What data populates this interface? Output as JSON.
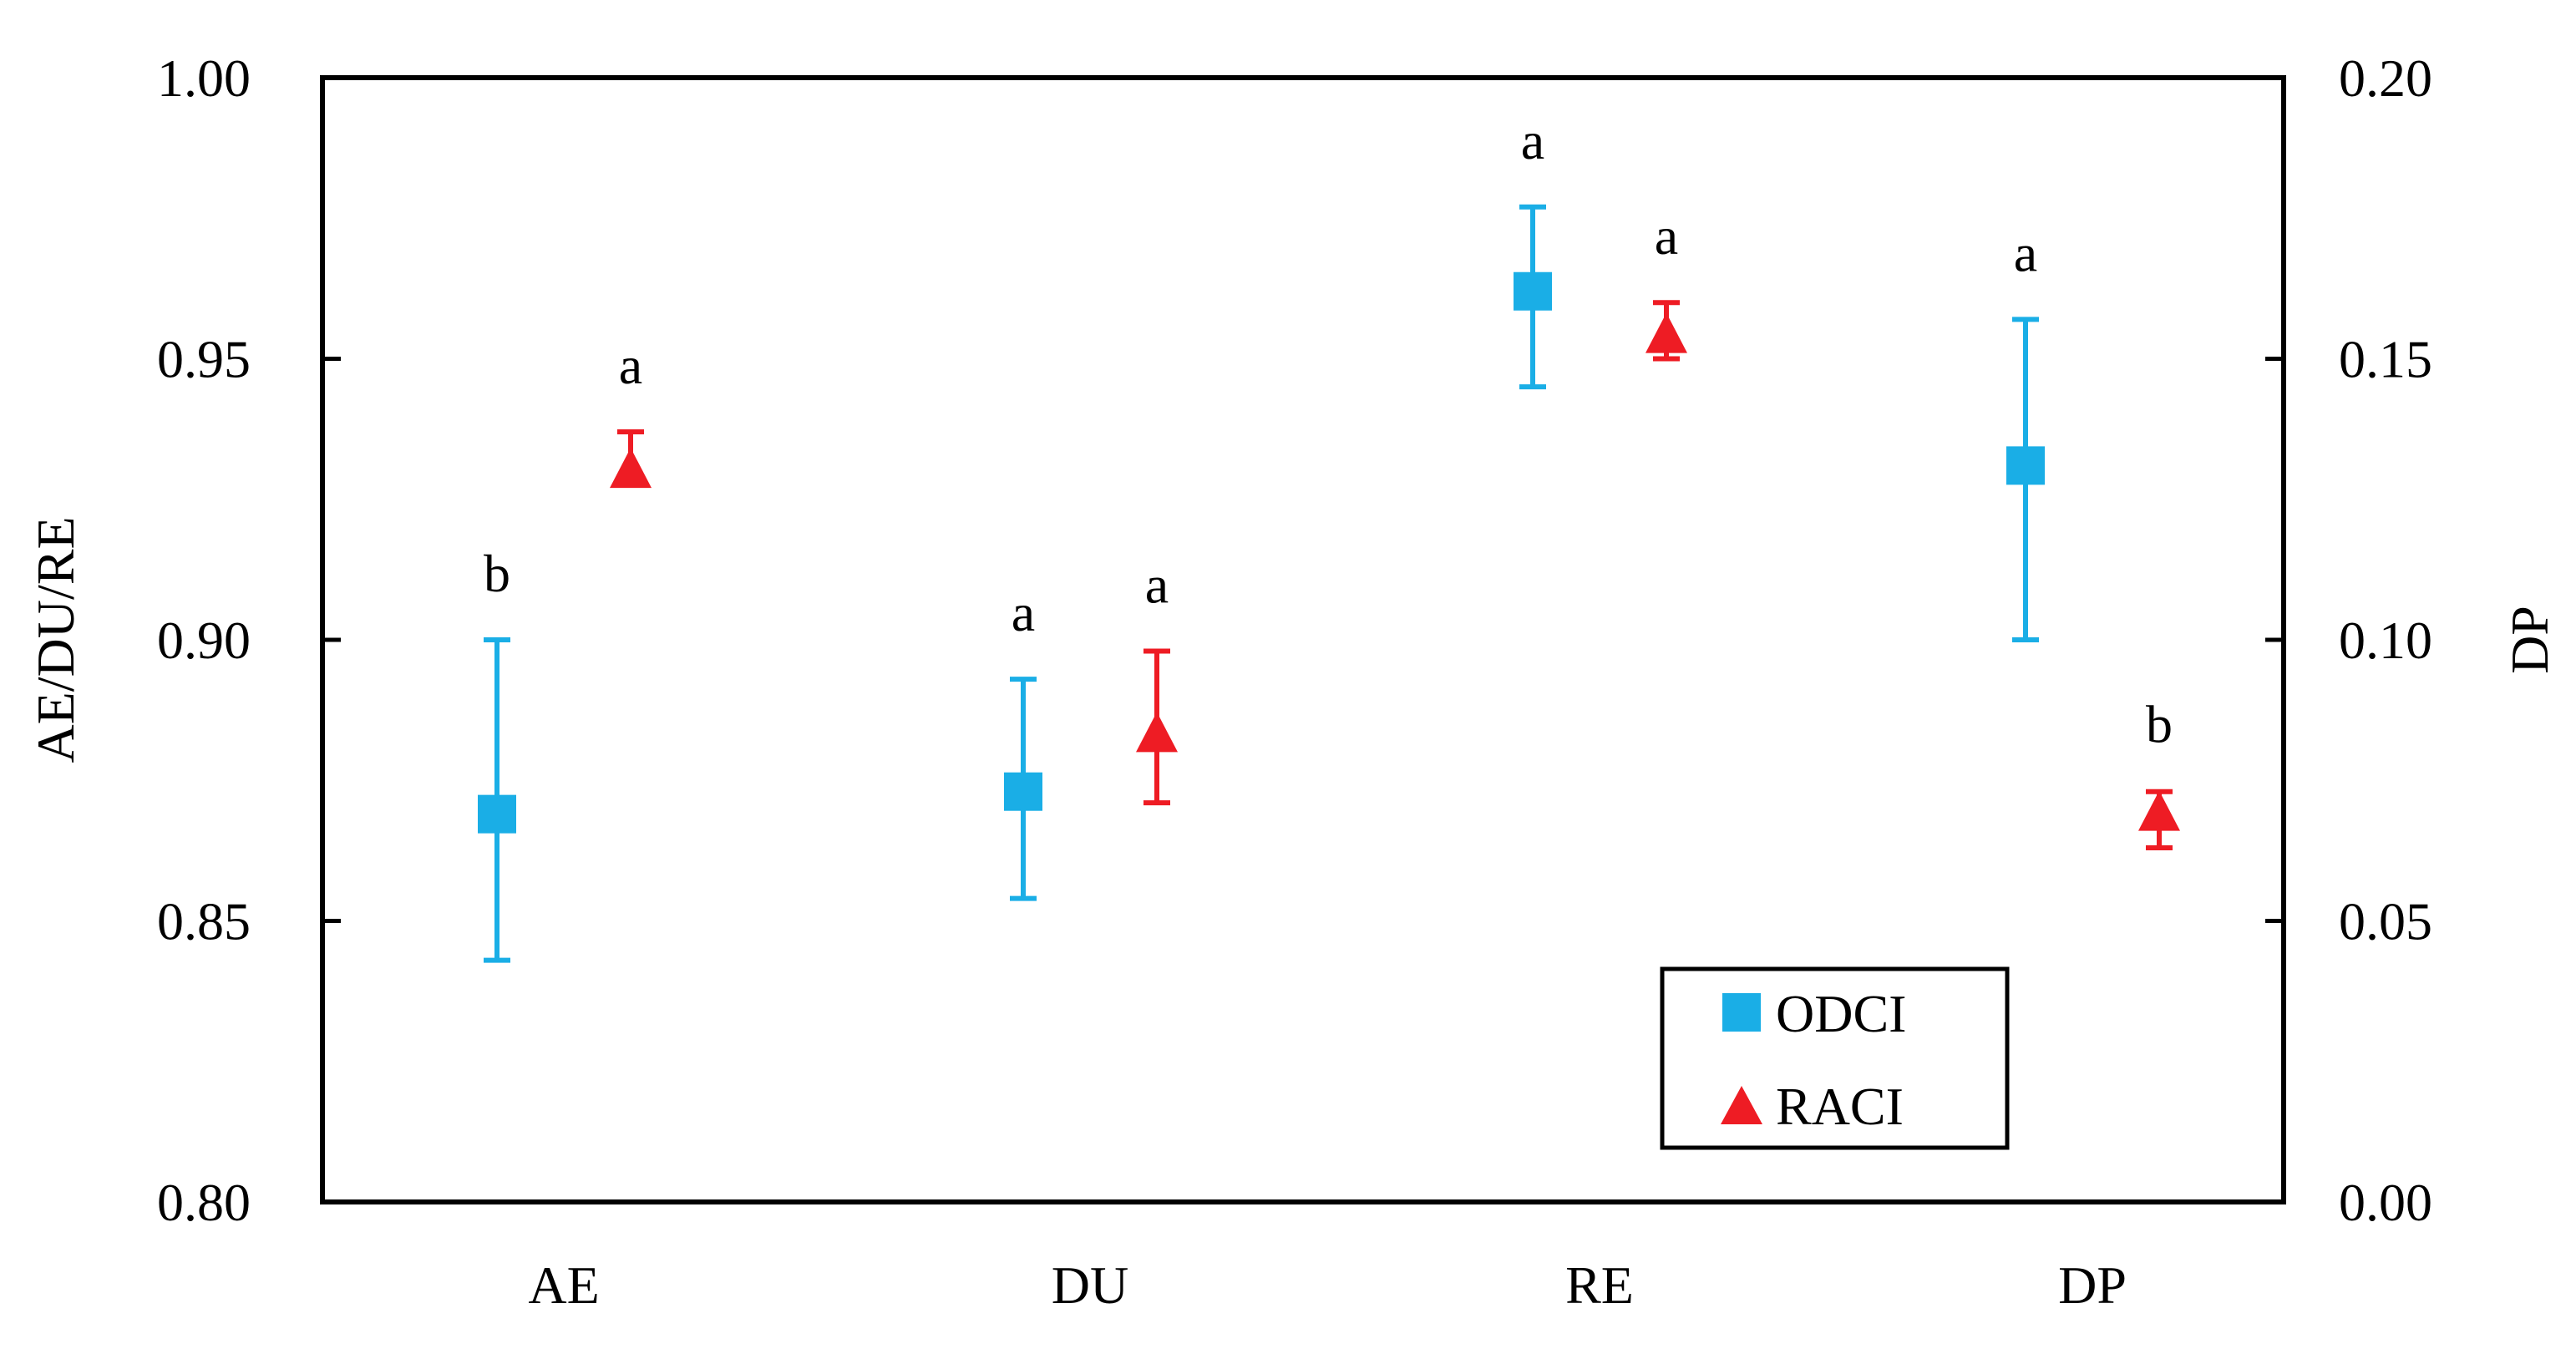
{
  "chart_data": {
    "type": "scatter",
    "categories": [
      "AE",
      "DU",
      "RE",
      "DP"
    ],
    "left_axis": {
      "label": "AE/DU/RE",
      "min": 0.8,
      "max": 1.0,
      "ticks": [
        "0.80",
        "0.85",
        "0.90",
        "0.95",
        "1.00"
      ]
    },
    "right_axis": {
      "label": "DP",
      "min": 0.0,
      "max": 0.2,
      "ticks": [
        "0.00",
        "0.05",
        "0.10",
        "0.15",
        "0.20"
      ]
    },
    "series": [
      {
        "name": "ODCI",
        "marker": "square",
        "color": "#1aaee6",
        "points": [
          {
            "category": "AE",
            "axis": "left",
            "y": 0.869,
            "low": 0.843,
            "high": 0.9,
            "letter": "b"
          },
          {
            "category": "DU",
            "axis": "left",
            "y": 0.873,
            "low": 0.854,
            "high": 0.893,
            "letter": "a"
          },
          {
            "category": "RE",
            "axis": "left",
            "y": 0.962,
            "low": 0.945,
            "high": 0.977,
            "letter": "a"
          },
          {
            "category": "DP",
            "axis": "right",
            "y": 0.131,
            "low": 0.1,
            "high": 0.157,
            "letter": "a"
          }
        ]
      },
      {
        "name": "RACI",
        "marker": "triangle",
        "color": "#ee1c24",
        "points": [
          {
            "category": "AE",
            "axis": "left",
            "y": 0.93,
            "low": 0.928,
            "high": 0.937,
            "letter": "a"
          },
          {
            "category": "DU",
            "axis": "left",
            "y": 0.883,
            "low": 0.871,
            "high": 0.898,
            "letter": "a"
          },
          {
            "category": "RE",
            "axis": "left",
            "y": 0.954,
            "low": 0.95,
            "high": 0.96,
            "letter": "a"
          },
          {
            "category": "DP",
            "axis": "right",
            "y": 0.069,
            "low": 0.063,
            "high": 0.073,
            "letter": "b"
          }
        ]
      }
    ],
    "legend": {
      "position": "bottom-right",
      "entries": [
        "ODCI",
        "RACI"
      ]
    },
    "grid": false
  }
}
